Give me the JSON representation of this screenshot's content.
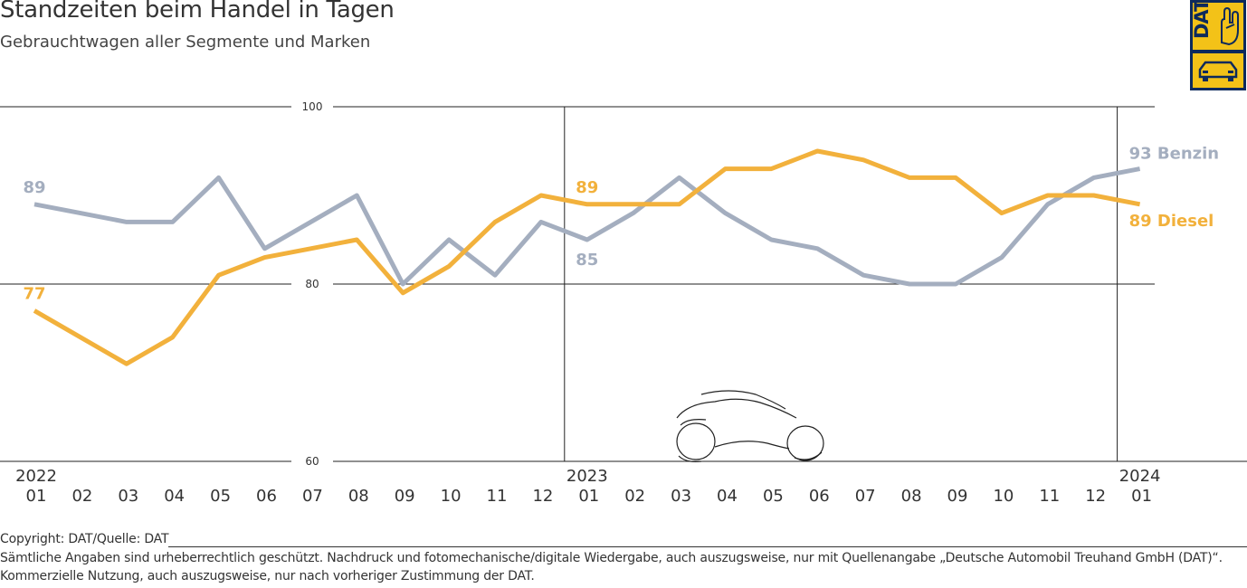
{
  "header": {
    "title": "Standzeiten beim Handel in Tagen",
    "subtitle": "Gebrauchtwagen aller Segmente und Marken"
  },
  "logo": {
    "text": "DAT",
    "accent": "#f3c218",
    "background": "#0d2a5c",
    "icon": "dat-logo-icon"
  },
  "chart_data": {
    "type": "line",
    "title": "Standzeiten beim Handel in Tagen",
    "subtitle": "Gebrauchtwagen aller Segmente und Marken",
    "ylim": [
      60,
      100
    ],
    "y_ticks": [
      {
        "value": 100,
        "label": "100"
      },
      {
        "value": 80,
        "label": "80"
      },
      {
        "value": 60,
        "label": "60"
      }
    ],
    "grid": true,
    "categories": [
      "01",
      "02",
      "03",
      "04",
      "05",
      "06",
      "07",
      "08",
      "09",
      "10",
      "11",
      "12",
      "01",
      "02",
      "03",
      "04",
      "05",
      "06",
      "07",
      "08",
      "09",
      "10",
      "11",
      "12",
      "01"
    ],
    "years": [
      {
        "label": "2022",
        "index": 0
      },
      {
        "label": "2023",
        "index": 12
      },
      {
        "label": "2024",
        "index": 24
      }
    ],
    "year_dividers": [
      12,
      24
    ],
    "series": [
      {
        "name": "Benzin",
        "color": "#a4aebf",
        "values": [
          89,
          88,
          87,
          87,
          92,
          84,
          87,
          90,
          80,
          85,
          81,
          87,
          85,
          88,
          92,
          88,
          85,
          84,
          81,
          80,
          80,
          83,
          89,
          92,
          93
        ],
        "labels": [
          {
            "index": 0,
            "text": "89",
            "pos": "above"
          },
          {
            "index": 12,
            "text": "85",
            "pos": "below"
          },
          {
            "index": 24,
            "text": "93 Benzin",
            "pos": "right-above"
          }
        ]
      },
      {
        "name": "Diesel",
        "color": "#f2b13c",
        "values": [
          77,
          74,
          71,
          74,
          81,
          83,
          84,
          85,
          79,
          82,
          87,
          90,
          89,
          89,
          89,
          93,
          93,
          95,
          94,
          92,
          92,
          88,
          90,
          90,
          89
        ],
        "labels": [
          {
            "index": 0,
            "text": "77",
            "pos": "above"
          },
          {
            "index": 12,
            "text": "89",
            "pos": "above"
          },
          {
            "index": 24,
            "text": "89 Diesel",
            "pos": "right-below"
          }
        ]
      }
    ]
  },
  "footer": {
    "copyright": "Copyright: DAT/Quelle: DAT",
    "rights": "Sämtliche Angaben sind urheberrechtlich geschützt. Nachdruck und fotomechanische/digitale Wiedergabe, auch auszugsweise, nur mit Quellenangabe „Deutsche Automobil Treuhand GmbH (DAT)“.",
    "usage": "Kommerzielle Nutzung, auch auszugsweise, nur nach vorheriger Zustimmung der DAT."
  }
}
